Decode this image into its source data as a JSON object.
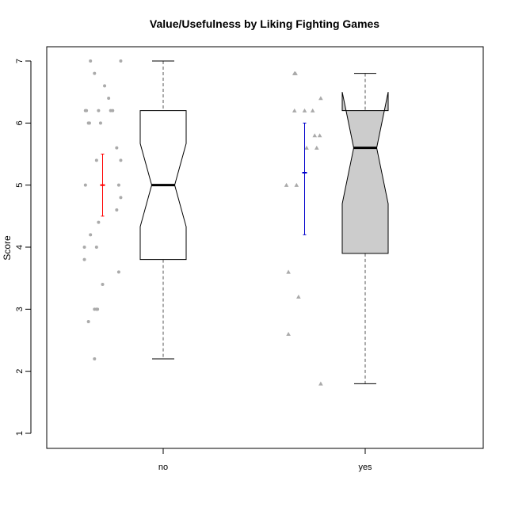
{
  "chart_data": {
    "type": "boxplot",
    "title": "Value/Usefulness by Liking Fighting Games",
    "ylabel": "Score",
    "xlabel": "",
    "categories": [
      "no",
      "yes"
    ],
    "ylim": [
      0.75,
      7.25
    ],
    "yticks": [
      "1",
      "2",
      "3",
      "4",
      "5",
      "6",
      "7"
    ],
    "notched": true,
    "boxes": [
      {
        "name": "no",
        "fill": "#ffffff",
        "whisker_low": 2.2,
        "q1": 3.8,
        "median": 5.0,
        "q3": 6.2,
        "whisker_high": 7.0,
        "notch_low": 4.33,
        "notch_high": 5.67
      },
      {
        "name": "yes",
        "fill": "#cccccc",
        "whisker_low": 1.8,
        "q1": 3.9,
        "median": 5.6,
        "q3": 6.2,
        "whisker_high": 6.8,
        "notch_low": 4.7,
        "notch_high": 6.5
      }
    ],
    "error_bars": [
      {
        "group": "no",
        "color": "#ff0000",
        "mean": 5.0,
        "low": 4.5,
        "high": 5.5
      },
      {
        "group": "yes",
        "color": "#0000cc",
        "mean": 5.2,
        "low": 4.2,
        "high": 6.0
      }
    ],
    "points": [
      {
        "group": "no",
        "marker": "circle",
        "color": "#aaaaaa",
        "values": [
          {
            "x": -0.36,
            "y": 7.0
          },
          {
            "x": -0.21,
            "y": 7.0
          },
          {
            "x": -0.34,
            "y": 6.8
          },
          {
            "x": -0.29,
            "y": 6.6
          },
          {
            "x": -0.27,
            "y": 6.4
          },
          {
            "x": -0.38,
            "y": 6.2
          },
          {
            "x": -0.385,
            "y": 6.2
          },
          {
            "x": -0.32,
            "y": 6.2
          },
          {
            "x": -0.26,
            "y": 6.2
          },
          {
            "x": -0.25,
            "y": 6.2
          },
          {
            "x": -0.37,
            "y": 6.0
          },
          {
            "x": -0.365,
            "y": 6.0
          },
          {
            "x": -0.31,
            "y": 6.0
          },
          {
            "x": -0.23,
            "y": 5.6
          },
          {
            "x": -0.21,
            "y": 5.4
          },
          {
            "x": -0.33,
            "y": 5.4
          },
          {
            "x": -0.385,
            "y": 5.0
          },
          {
            "x": -0.22,
            "y": 5.0
          },
          {
            "x": -0.21,
            "y": 4.8
          },
          {
            "x": -0.23,
            "y": 4.6
          },
          {
            "x": -0.32,
            "y": 4.4
          },
          {
            "x": -0.36,
            "y": 4.2
          },
          {
            "x": -0.39,
            "y": 4.0
          },
          {
            "x": -0.33,
            "y": 4.0
          },
          {
            "x": -0.39,
            "y": 3.8
          },
          {
            "x": -0.22,
            "y": 3.6
          },
          {
            "x": -0.3,
            "y": 3.4
          },
          {
            "x": -0.34,
            "y": 3.0
          },
          {
            "x": -0.33,
            "y": 3.0
          },
          {
            "x": -0.325,
            "y": 3.0
          },
          {
            "x": -0.37,
            "y": 2.8
          },
          {
            "x": -0.34,
            "y": 2.2
          }
        ]
      },
      {
        "group": "yes",
        "marker": "triangle",
        "color": "#aaaaaa",
        "values": [
          {
            "x": -0.35,
            "y": 6.8
          },
          {
            "x": -0.345,
            "y": 6.8
          },
          {
            "x": -0.22,
            "y": 6.4
          },
          {
            "x": -0.35,
            "y": 6.2
          },
          {
            "x": -0.3,
            "y": 6.2
          },
          {
            "x": -0.26,
            "y": 6.2
          },
          {
            "x": -0.25,
            "y": 5.8
          },
          {
            "x": -0.225,
            "y": 5.8
          },
          {
            "x": -0.29,
            "y": 5.6
          },
          {
            "x": -0.24,
            "y": 5.6
          },
          {
            "x": -0.39,
            "y": 5.0
          },
          {
            "x": -0.34,
            "y": 5.0
          },
          {
            "x": -0.38,
            "y": 3.6
          },
          {
            "x": -0.33,
            "y": 3.2
          },
          {
            "x": -0.38,
            "y": 2.6
          },
          {
            "x": -0.22,
            "y": 1.8
          }
        ]
      }
    ],
    "grid": false,
    "legend": "none",
    "colors": {
      "axis": "#000000",
      "point": "#aaaaaa",
      "whisker": "#555555"
    }
  }
}
